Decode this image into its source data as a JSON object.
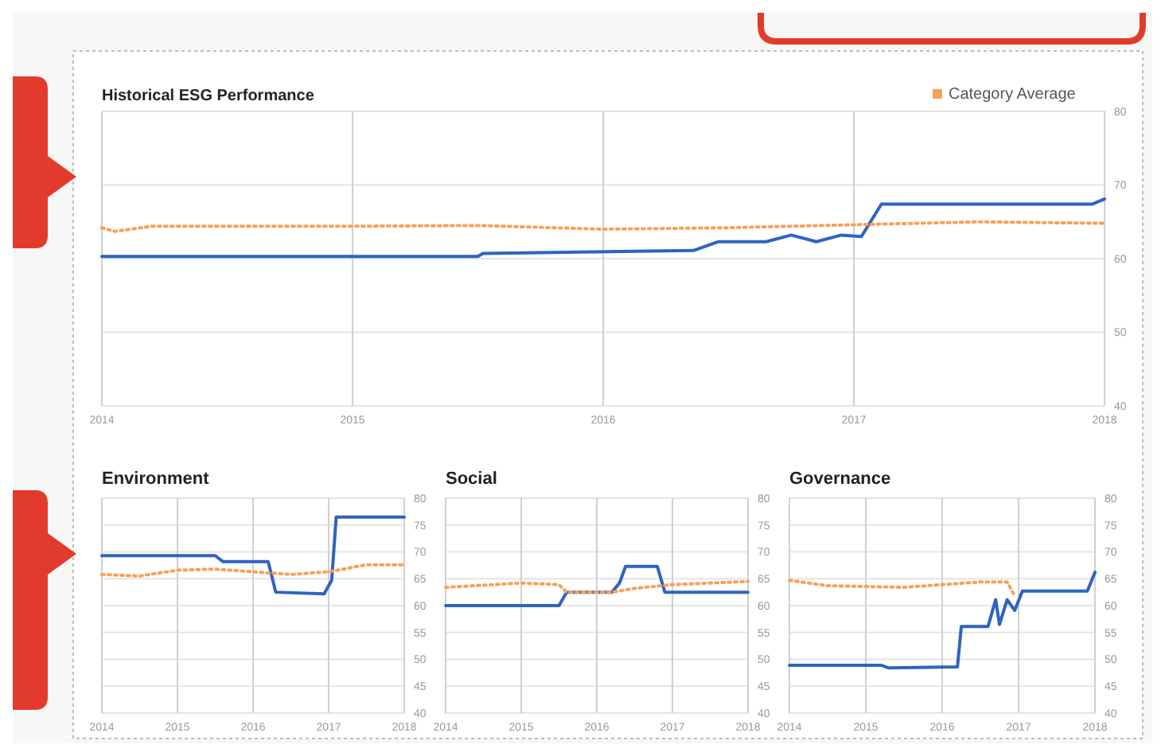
{
  "chart_data": [
    {
      "type": "line",
      "title": "Historical ESG Performance",
      "xlim": [
        2014,
        2018
      ],
      "xticks": [
        2014,
        2015,
        2016,
        2017,
        2018
      ],
      "ylim": [
        40,
        80
      ],
      "yticks": [
        40,
        50,
        60,
        70,
        80
      ],
      "grid": true,
      "legend": "top right",
      "marker": "none",
      "series": [
        {
          "color": "#2f63c0",
          "line_style": "solid",
          "x": [
            2014,
            2015.5,
            2015.52,
            2016.36,
            2016.46,
            2016.65,
            2016.75,
            2016.85,
            2016.95,
            2017.03,
            2017.11,
            2017.95,
            2018
          ],
          "values": [
            60.3,
            60.3,
            60.7,
            61.1,
            62.3,
            62.3,
            63.2,
            62.3,
            63.2,
            63,
            67.4,
            67.4,
            68.1
          ]
        },
        {
          "name": "Category Average",
          "color": "#f5a25a",
          "line_style": "dotted",
          "x": [
            2014,
            2014.05,
            2014.2,
            2015,
            2015.5,
            2016,
            2016.5,
            2017,
            2017.5,
            2018
          ],
          "values": [
            64.2,
            63.7,
            64.4,
            64.4,
            64.5,
            64,
            64.2,
            64.6,
            65,
            64.8
          ]
        }
      ]
    },
    {
      "type": "line",
      "title": "Environment",
      "xlim": [
        2014,
        2018
      ],
      "xticks": [
        2014,
        2015,
        2016,
        2017,
        2018
      ],
      "ylim": [
        40,
        80
      ],
      "yticks": [
        40,
        45,
        50,
        55,
        60,
        65,
        70,
        75,
        80
      ],
      "grid": true,
      "marker": "none",
      "series": [
        {
          "color": "#2f63c0",
          "line_style": "solid",
          "x": [
            2014,
            2015.5,
            2015.6,
            2016.2,
            2016.3,
            2016.94,
            2017.04,
            2017.1,
            2018
          ],
          "values": [
            69.3,
            69.3,
            68.2,
            68.2,
            62.5,
            62.2,
            64.7,
            76.5,
            76.5
          ]
        },
        {
          "color": "#f5a25a",
          "line_style": "dotted",
          "x": [
            2014,
            2014.5,
            2015,
            2015.5,
            2016,
            2016.5,
            2017,
            2017.5,
            2018
          ],
          "values": [
            65.8,
            65.5,
            66.6,
            66.8,
            66.3,
            65.8,
            66.3,
            67.6,
            67.6
          ]
        }
      ]
    },
    {
      "type": "line",
      "title": "Social",
      "xlim": [
        2014,
        2018
      ],
      "xticks": [
        2014,
        2015,
        2016,
        2017,
        2018
      ],
      "ylim": [
        40,
        80
      ],
      "yticks": [
        40,
        45,
        50,
        55,
        60,
        65,
        70,
        75,
        80
      ],
      "grid": true,
      "marker": "none",
      "series": [
        {
          "color": "#2f63c0",
          "line_style": "solid",
          "x": [
            2014,
            2015.5,
            2015.6,
            2016.2,
            2016.3,
            2016.38,
            2016.8,
            2016.9,
            2018
          ],
          "values": [
            60,
            60,
            62.5,
            62.5,
            64.2,
            67.3,
            67.3,
            62.5,
            62.5
          ]
        },
        {
          "color": "#f5a25a",
          "line_style": "dotted",
          "x": [
            2014,
            2015,
            2015.5,
            2015.6,
            2016.2,
            2016.5,
            2017,
            2018
          ],
          "values": [
            63.4,
            64.2,
            63.9,
            62.5,
            62.5,
            63.2,
            63.9,
            64.5
          ]
        }
      ]
    },
    {
      "type": "line",
      "title": "Governance",
      "xlim": [
        2014,
        2018
      ],
      "xticks": [
        2014,
        2015,
        2016,
        2017,
        2018
      ],
      "ylim": [
        40,
        80
      ],
      "yticks": [
        40,
        45,
        50,
        55,
        60,
        65,
        70,
        75,
        80
      ],
      "grid": true,
      "marker": "none",
      "series": [
        {
          "color": "#2f63c0",
          "line_style": "solid",
          "x": [
            2014,
            2015.2,
            2015.3,
            2016.2,
            2016.25,
            2016.6,
            2016.7,
            2016.75,
            2016.85,
            2016.95,
            2017.05,
            2017.9,
            2018
          ],
          "values": [
            48.9,
            48.9,
            48.4,
            48.6,
            56.1,
            56.1,
            61.1,
            56.5,
            61.1,
            59.1,
            62.7,
            62.7,
            66.2
          ]
        },
        {
          "color": "#f5a25a",
          "line_style": "dotted",
          "x": [
            2014,
            2014.5,
            2015.5,
            2016.5,
            2016.85,
            2016.95
          ],
          "values": [
            64.7,
            63.7,
            63.4,
            64.4,
            64.4,
            61.8
          ]
        }
      ]
    }
  ]
}
